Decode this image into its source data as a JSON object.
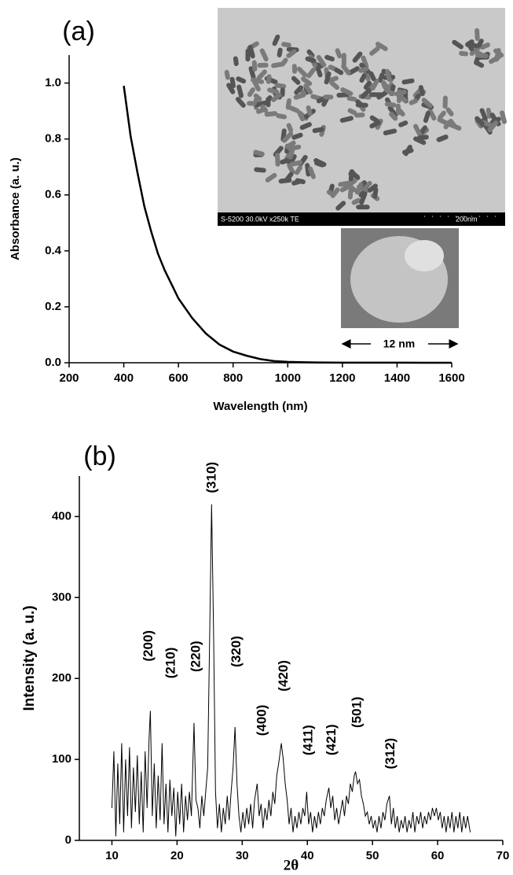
{
  "chart_data": [
    {
      "type": "line",
      "panel_label": "(a)",
      "xlabel": "Wavelength (nm)",
      "ylabel": "Absorbance (a. u.)",
      "x": [
        400,
        425,
        450,
        475,
        500,
        525,
        550,
        575,
        600,
        650,
        700,
        750,
        800,
        850,
        900,
        950,
        1000,
        1100,
        1200,
        1300,
        1400,
        1500,
        1600
      ],
      "values": [
        0.99,
        0.81,
        0.68,
        0.56,
        0.47,
        0.39,
        0.33,
        0.28,
        0.23,
        0.16,
        0.105,
        0.065,
        0.04,
        0.025,
        0.013,
        0.006,
        0.003,
        0.001,
        0.0005,
        0.0003,
        0.0002,
        0.0001,
        0
      ],
      "color": "#000000",
      "xlim": [
        200,
        1600
      ],
      "xticks": [
        200,
        400,
        600,
        800,
        1000,
        1200,
        1400,
        1600
      ],
      "ylim": [
        0,
        1.1
      ],
      "yticks": [
        {
          "value": 0,
          "label": "0.0"
        },
        0.2,
        0.4,
        0.6,
        0.8,
        {
          "value": 1,
          "label": "1.0"
        }
      ],
      "inset_caption": "S-5200 30.0kV x250k TE",
      "inset_scale": "200nm",
      "inset2_scale": "12 nm"
    },
    {
      "type": "line",
      "panel_label": "(b)",
      "xlabel": "2θ",
      "ylabel": "Intensity (a. u.)",
      "x": [
        10,
        10.3,
        10.6,
        10.9,
        11.2,
        11.5,
        11.8,
        12.1,
        12.4,
        12.7,
        13.0,
        13.3,
        13.6,
        13.9,
        14.2,
        14.5,
        14.8,
        15.1,
        15.4,
        15.7,
        15.9,
        16.2,
        16.5,
        16.8,
        17.1,
        17.4,
        17.7,
        18.0,
        18.3,
        18.6,
        18.9,
        19.2,
        19.5,
        19.8,
        20.1,
        20.4,
        20.7,
        21.0,
        21.3,
        21.6,
        21.9,
        22.2,
        22.6,
        22.9,
        23.2,
        23.5,
        23.8,
        24.1,
        24.4,
        24.7,
        25.0,
        25.3,
        25.6,
        25.9,
        26.2,
        26.5,
        26.8,
        27.1,
        27.4,
        27.7,
        28.0,
        28.3,
        28.6,
        28.9,
        29.2,
        29.5,
        29.8,
        30.1,
        30.4,
        30.7,
        31.0,
        31.3,
        31.6,
        31.9,
        32.3,
        32.6,
        32.9,
        33.2,
        33.5,
        33.8,
        34.1,
        34.4,
        34.7,
        35.0,
        35.3,
        35.6,
        36.0,
        36.3,
        36.6,
        36.9,
        37.2,
        37.5,
        37.8,
        38.1,
        38.4,
        38.7,
        39.0,
        39.3,
        39.6,
        39.9,
        40.2,
        40.5,
        40.8,
        41.1,
        41.4,
        41.7,
        42.0,
        42.3,
        42.6,
        42.9,
        43.3,
        43.6,
        43.9,
        44.2,
        44.5,
        44.8,
        45.1,
        45.4,
        45.7,
        46.0,
        46.3,
        46.6,
        46.9,
        47.2,
        47.4,
        47.7,
        48.0,
        48.3,
        48.6,
        48.9,
        49.2,
        49.5,
        49.8,
        50.1,
        50.4,
        50.7,
        51.0,
        51.3,
        51.6,
        51.9,
        52.2,
        52.6,
        52.9,
        53.2,
        53.5,
        53.8,
        54.1,
        54.4,
        54.7,
        55.0,
        55.3,
        55.6,
        55.9,
        56.2,
        56.5,
        56.8,
        57.1,
        57.4,
        57.7,
        58.0,
        58.3,
        58.6,
        58.9,
        59.2,
        59.5,
        59.8,
        60.1,
        60.4,
        60.7,
        61.0,
        61.3,
        61.6,
        61.9,
        62.2,
        62.5,
        62.8,
        63.1,
        63.4,
        63.7,
        64.0,
        64.3,
        64.6,
        65.0
      ],
      "values": [
        40,
        110,
        5,
        95,
        20,
        120,
        10,
        100,
        30,
        115,
        15,
        90,
        35,
        105,
        20,
        85,
        10,
        110,
        40,
        125,
        160,
        30,
        95,
        15,
        80,
        25,
        120,
        20,
        70,
        10,
        75,
        30,
        65,
        5,
        60,
        20,
        70,
        10,
        55,
        25,
        60,
        30,
        145,
        50,
        40,
        15,
        55,
        30,
        60,
        90,
        250,
        415,
        260,
        60,
        15,
        45,
        10,
        40,
        20,
        55,
        25,
        60,
        90,
        140,
        70,
        30,
        10,
        35,
        15,
        40,
        20,
        45,
        15,
        50,
        70,
        30,
        45,
        15,
        40,
        25,
        50,
        30,
        60,
        45,
        80,
        95,
        120,
        100,
        70,
        50,
        20,
        40,
        10,
        30,
        15,
        35,
        20,
        40,
        30,
        60,
        20,
        35,
        10,
        30,
        15,
        35,
        20,
        40,
        30,
        50,
        65,
        40,
        55,
        25,
        40,
        20,
        35,
        50,
        30,
        55,
        45,
        70,
        60,
        80,
        85,
        70,
        75,
        55,
        45,
        30,
        35,
        20,
        30,
        15,
        25,
        10,
        30,
        15,
        35,
        25,
        45,
        55,
        20,
        40,
        15,
        30,
        10,
        25,
        15,
        30,
        10,
        25,
        15,
        35,
        10,
        30,
        20,
        35,
        15,
        30,
        20,
        35,
        25,
        40,
        30,
        40,
        25,
        35,
        15,
        30,
        10,
        30,
        15,
        35,
        10,
        30,
        15,
        35,
        10,
        30,
        15,
        30,
        10
      ],
      "color": "#000000",
      "xlim": [
        5,
        70
      ],
      "xticks": [
        10,
        20,
        30,
        40,
        50,
        60,
        70
      ],
      "ylim": [
        0,
        450
      ],
      "yticks": [
        0,
        100,
        200,
        300,
        400
      ],
      "annotations": [
        {
          "text": "(200)",
          "x": 15.7,
          "y": 221
        },
        {
          "text": "(210)",
          "x": 19.1,
          "y": 200
        },
        {
          "text": "(220)",
          "x": 23.0,
          "y": 208
        },
        {
          "text": "(310)",
          "x": 25.4,
          "y": 429
        },
        {
          "text": "(320)",
          "x": 29.2,
          "y": 214
        },
        {
          "text": "(400)",
          "x": 33.1,
          "y": 129
        },
        {
          "text": "(420)",
          "x": 36.4,
          "y": 184
        },
        {
          "text": "(411)",
          "x": 40.2,
          "y": 105
        },
        {
          "text": "(421)",
          "x": 43.8,
          "y": 105
        },
        {
          "text": "(501)",
          "x": 47.7,
          "y": 139
        },
        {
          "text": "(312)",
          "x": 52.8,
          "y": 88
        }
      ]
    }
  ]
}
